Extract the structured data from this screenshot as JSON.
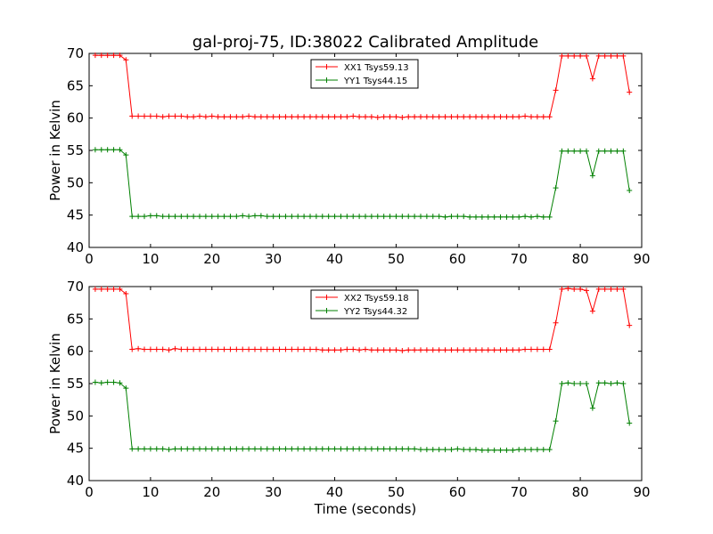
{
  "title": "gal-proj-75, ID:38022 Calibrated Amplitude",
  "chart_data": [
    {
      "type": "line",
      "ylabel": "Power in Kelvin",
      "xlabel": "",
      "xlim": [
        0,
        90
      ],
      "ylim": [
        40,
        70
      ],
      "xticks": [
        "0",
        "10",
        "20",
        "30",
        "40",
        "50",
        "60",
        "70",
        "80",
        "90"
      ],
      "yticks": [
        "40",
        "45",
        "50",
        "55",
        "60",
        "65",
        "70"
      ],
      "legend_position": "top-center",
      "series": [
        {
          "name": "XX1 Tsys59.13",
          "color": "#ff0000",
          "x": [
            1,
            2,
            3,
            4,
            5,
            6,
            7,
            8,
            9,
            10,
            11,
            12,
            13,
            14,
            15,
            16,
            17,
            18,
            19,
            20,
            21,
            22,
            23,
            24,
            25,
            26,
            27,
            28,
            29,
            30,
            31,
            32,
            33,
            34,
            35,
            36,
            37,
            38,
            39,
            40,
            41,
            42,
            43,
            44,
            45,
            46,
            47,
            48,
            49,
            50,
            51,
            52,
            53,
            54,
            55,
            56,
            57,
            58,
            59,
            60,
            61,
            62,
            63,
            64,
            65,
            66,
            67,
            68,
            69,
            70,
            71,
            72,
            73,
            74,
            75,
            76,
            77,
            78,
            79,
            80,
            81,
            82,
            83,
            84,
            85,
            86,
            87,
            88
          ],
          "y": [
            69.7,
            69.7,
            69.7,
            69.7,
            69.7,
            69.0,
            60.3,
            60.3,
            60.3,
            60.3,
            60.3,
            60.2,
            60.3,
            60.3,
            60.3,
            60.2,
            60.2,
            60.3,
            60.2,
            60.3,
            60.2,
            60.2,
            60.2,
            60.2,
            60.2,
            60.3,
            60.2,
            60.2,
            60.2,
            60.2,
            60.2,
            60.2,
            60.2,
            60.2,
            60.2,
            60.2,
            60.2,
            60.2,
            60.2,
            60.2,
            60.2,
            60.2,
            60.3,
            60.2,
            60.2,
            60.2,
            60.1,
            60.2,
            60.2,
            60.2,
            60.1,
            60.2,
            60.2,
            60.2,
            60.2,
            60.2,
            60.2,
            60.2,
            60.2,
            60.2,
            60.2,
            60.2,
            60.2,
            60.2,
            60.2,
            60.2,
            60.2,
            60.2,
            60.2,
            60.2,
            60.3,
            60.2,
            60.2,
            60.2,
            60.2,
            64.3,
            69.6,
            69.6,
            69.6,
            69.6,
            69.6,
            66.1,
            69.6,
            69.6,
            69.6,
            69.6,
            69.6,
            64.0
          ]
        },
        {
          "name": "YY1 Tsys44.15",
          "color": "#008000",
          "x": [
            1,
            2,
            3,
            4,
            5,
            6,
            7,
            8,
            9,
            10,
            11,
            12,
            13,
            14,
            15,
            16,
            17,
            18,
            19,
            20,
            21,
            22,
            23,
            24,
            25,
            26,
            27,
            28,
            29,
            30,
            31,
            32,
            33,
            34,
            35,
            36,
            37,
            38,
            39,
            40,
            41,
            42,
            43,
            44,
            45,
            46,
            47,
            48,
            49,
            50,
            51,
            52,
            53,
            54,
            55,
            56,
            57,
            58,
            59,
            60,
            61,
            62,
            63,
            64,
            65,
            66,
            67,
            68,
            69,
            70,
            71,
            72,
            73,
            74,
            75,
            76,
            77,
            78,
            79,
            80,
            81,
            82,
            83,
            84,
            85,
            86,
            87,
            88
          ],
          "y": [
            55.1,
            55.1,
            55.1,
            55.1,
            55.1,
            54.3,
            44.8,
            44.8,
            44.8,
            44.9,
            44.9,
            44.8,
            44.8,
            44.8,
            44.8,
            44.8,
            44.8,
            44.8,
            44.8,
            44.8,
            44.8,
            44.8,
            44.8,
            44.8,
            44.9,
            44.8,
            44.9,
            44.9,
            44.8,
            44.8,
            44.8,
            44.8,
            44.8,
            44.8,
            44.8,
            44.8,
            44.8,
            44.8,
            44.8,
            44.8,
            44.8,
            44.8,
            44.8,
            44.8,
            44.8,
            44.8,
            44.8,
            44.8,
            44.8,
            44.8,
            44.8,
            44.8,
            44.8,
            44.8,
            44.8,
            44.8,
            44.8,
            44.7,
            44.8,
            44.8,
            44.8,
            44.7,
            44.7,
            44.7,
            44.7,
            44.7,
            44.7,
            44.7,
            44.7,
            44.7,
            44.8,
            44.7,
            44.8,
            44.7,
            44.7,
            49.2,
            54.9,
            54.9,
            54.9,
            54.9,
            54.9,
            51.1,
            54.9,
            54.9,
            54.9,
            54.9,
            54.9,
            48.8
          ]
        }
      ]
    },
    {
      "type": "line",
      "ylabel": "Power in Kelvin",
      "xlabel": "Time (seconds)",
      "xlim": [
        0,
        90
      ],
      "ylim": [
        40,
        70
      ],
      "xticks": [
        "0",
        "10",
        "20",
        "30",
        "40",
        "50",
        "60",
        "70",
        "80",
        "90"
      ],
      "yticks": [
        "40",
        "45",
        "50",
        "55",
        "60",
        "65",
        "70"
      ],
      "legend_position": "top-center",
      "series": [
        {
          "name": "XX2 Tsys59.18",
          "color": "#ff0000",
          "x": [
            1,
            2,
            3,
            4,
            5,
            6,
            7,
            8,
            9,
            10,
            11,
            12,
            13,
            14,
            15,
            16,
            17,
            18,
            19,
            20,
            21,
            22,
            23,
            24,
            25,
            26,
            27,
            28,
            29,
            30,
            31,
            32,
            33,
            34,
            35,
            36,
            37,
            38,
            39,
            40,
            41,
            42,
            43,
            44,
            45,
            46,
            47,
            48,
            49,
            50,
            51,
            52,
            53,
            54,
            55,
            56,
            57,
            58,
            59,
            60,
            61,
            62,
            63,
            64,
            65,
            66,
            67,
            68,
            69,
            70,
            71,
            72,
            73,
            74,
            75,
            76,
            77,
            78,
            79,
            80,
            81,
            82,
            83,
            84,
            85,
            86,
            87,
            88
          ],
          "y": [
            69.6,
            69.6,
            69.6,
            69.6,
            69.6,
            68.9,
            60.3,
            60.4,
            60.3,
            60.3,
            60.3,
            60.3,
            60.2,
            60.4,
            60.3,
            60.3,
            60.3,
            60.3,
            60.3,
            60.3,
            60.3,
            60.3,
            60.3,
            60.3,
            60.3,
            60.3,
            60.3,
            60.3,
            60.3,
            60.3,
            60.3,
            60.3,
            60.3,
            60.3,
            60.3,
            60.3,
            60.3,
            60.2,
            60.2,
            60.2,
            60.2,
            60.3,
            60.3,
            60.2,
            60.3,
            60.2,
            60.2,
            60.2,
            60.2,
            60.2,
            60.1,
            60.2,
            60.2,
            60.2,
            60.2,
            60.2,
            60.2,
            60.2,
            60.2,
            60.2,
            60.2,
            60.2,
            60.2,
            60.2,
            60.2,
            60.2,
            60.2,
            60.2,
            60.2,
            60.2,
            60.3,
            60.3,
            60.3,
            60.3,
            60.3,
            64.4,
            69.6,
            69.7,
            69.6,
            69.6,
            69.4,
            66.2,
            69.6,
            69.6,
            69.6,
            69.6,
            69.6,
            64.0
          ]
        },
        {
          "name": "YY2 Tsys44.32",
          "color": "#008000",
          "x": [
            1,
            2,
            3,
            4,
            5,
            6,
            7,
            8,
            9,
            10,
            11,
            12,
            13,
            14,
            15,
            16,
            17,
            18,
            19,
            20,
            21,
            22,
            23,
            24,
            25,
            26,
            27,
            28,
            29,
            30,
            31,
            32,
            33,
            34,
            35,
            36,
            37,
            38,
            39,
            40,
            41,
            42,
            43,
            44,
            45,
            46,
            47,
            48,
            49,
            50,
            51,
            52,
            53,
            54,
            55,
            56,
            57,
            58,
            59,
            60,
            61,
            62,
            63,
            64,
            65,
            66,
            67,
            68,
            69,
            70,
            71,
            72,
            73,
            74,
            75,
            76,
            77,
            78,
            79,
            80,
            81,
            82,
            83,
            84,
            85,
            86,
            87,
            88
          ],
          "y": [
            55.2,
            55.1,
            55.2,
            55.2,
            55.1,
            54.3,
            44.9,
            44.9,
            44.9,
            44.9,
            44.9,
            44.9,
            44.8,
            44.9,
            44.9,
            44.9,
            44.9,
            44.9,
            44.9,
            44.9,
            44.9,
            44.9,
            44.9,
            44.9,
            44.9,
            44.9,
            44.9,
            44.9,
            44.9,
            44.9,
            44.9,
            44.9,
            44.9,
            44.9,
            44.9,
            44.9,
            44.9,
            44.9,
            44.9,
            44.9,
            44.9,
            44.9,
            44.9,
            44.9,
            44.9,
            44.9,
            44.9,
            44.9,
            44.9,
            44.9,
            44.9,
            44.9,
            44.9,
            44.8,
            44.8,
            44.8,
            44.8,
            44.8,
            44.8,
            44.9,
            44.8,
            44.8,
            44.8,
            44.7,
            44.7,
            44.7,
            44.7,
            44.7,
            44.7,
            44.8,
            44.8,
            44.8,
            44.8,
            44.8,
            44.8,
            49.2,
            55.0,
            55.1,
            55.0,
            55.0,
            55.0,
            51.2,
            55.1,
            55.1,
            55.0,
            55.1,
            55.0,
            48.9
          ]
        }
      ]
    }
  ]
}
